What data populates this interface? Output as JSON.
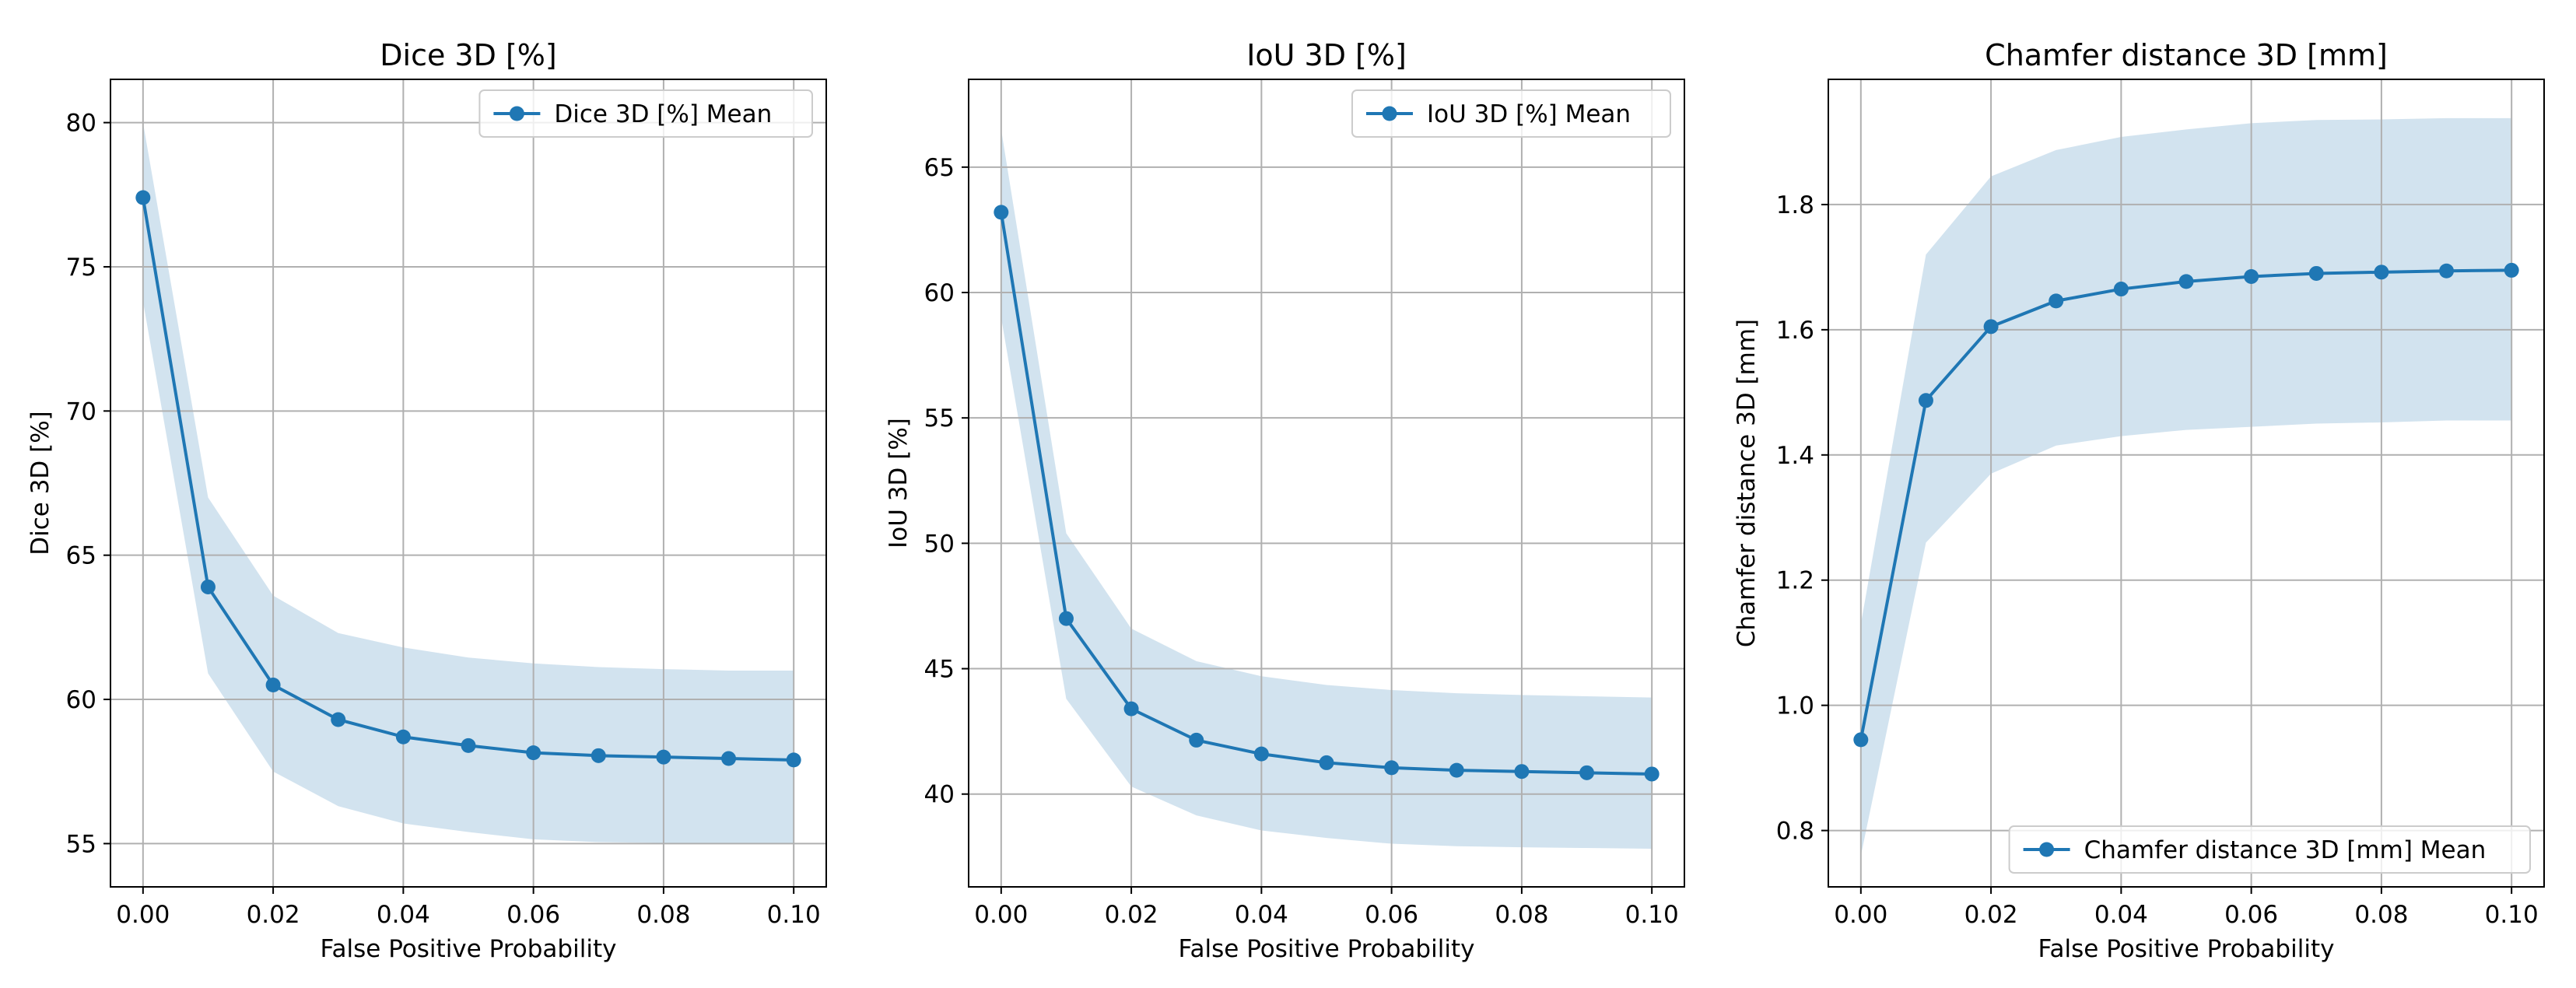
{
  "chart_data": [
    {
      "type": "line",
      "title": "Dice 3D [%]",
      "xlabel": "False Positive Probability",
      "ylabel": "Dice 3D [%]",
      "xlim": [
        -0.005,
        0.105
      ],
      "ylim": [
        53.5,
        81.5
      ],
      "x_ticks": [
        0.0,
        0.02,
        0.04,
        0.06,
        0.08,
        0.1
      ],
      "x_tick_labels": [
        "0.00",
        "0.02",
        "0.04",
        "0.06",
        "0.08",
        "0.10"
      ],
      "y_ticks": [
        55,
        60,
        65,
        70,
        75,
        80
      ],
      "y_tick_labels": [
        "55",
        "60",
        "65",
        "70",
        "75",
        "80"
      ],
      "grid": true,
      "legend_position": "upper right",
      "series": [
        {
          "name": "Dice 3D [%] Mean",
          "color": "#1f77b4",
          "x": [
            0.0,
            0.01,
            0.02,
            0.03,
            0.04,
            0.05,
            0.06,
            0.07,
            0.08,
            0.09,
            0.1
          ],
          "values": [
            77.4,
            63.9,
            60.5,
            59.3,
            58.7,
            58.4,
            58.15,
            58.05,
            58.0,
            57.95,
            57.9
          ],
          "band_upper": [
            80.0,
            67.0,
            63.6,
            62.3,
            61.8,
            61.45,
            61.25,
            61.12,
            61.05,
            61.0,
            61.0
          ],
          "band_lower": [
            73.8,
            60.9,
            57.5,
            56.3,
            55.7,
            55.4,
            55.15,
            55.05,
            55.02,
            55.0,
            55.0
          ],
          "band_color": "#a6c8e0"
        }
      ]
    },
    {
      "type": "line",
      "title": "IoU 3D [%]",
      "xlabel": "False Positive Probability",
      "ylabel": "IoU 3D [%]",
      "xlim": [
        -0.005,
        0.105
      ],
      "ylim": [
        36.3,
        68.5
      ],
      "x_ticks": [
        0.0,
        0.02,
        0.04,
        0.06,
        0.08,
        0.1
      ],
      "x_tick_labels": [
        "0.00",
        "0.02",
        "0.04",
        "0.06",
        "0.08",
        "0.10"
      ],
      "y_ticks": [
        40,
        45,
        50,
        55,
        60,
        65
      ],
      "y_tick_labels": [
        "40",
        "45",
        "50",
        "55",
        "60",
        "65"
      ],
      "grid": true,
      "legend_position": "upper right",
      "series": [
        {
          "name": "IoU 3D [%] Mean",
          "color": "#1f77b4",
          "x": [
            0.0,
            0.01,
            0.02,
            0.03,
            0.04,
            0.05,
            0.06,
            0.07,
            0.08,
            0.09,
            0.1
          ],
          "values": [
            63.2,
            47.0,
            43.4,
            42.15,
            41.6,
            41.25,
            41.05,
            40.95,
            40.9,
            40.85,
            40.8
          ],
          "band_upper": [
            66.5,
            50.4,
            46.6,
            45.3,
            44.7,
            44.35,
            44.15,
            44.02,
            43.95,
            43.9,
            43.85
          ],
          "band_lower": [
            59.0,
            43.8,
            40.3,
            39.15,
            38.55,
            38.25,
            38.02,
            37.92,
            37.88,
            37.85,
            37.82
          ],
          "band_color": "#a6c8e0"
        }
      ]
    },
    {
      "type": "line",
      "title": "Chamfer distance 3D [mm]",
      "xlabel": "False Positive Probability",
      "ylabel": "Chamfer distance 3D [mm]",
      "xlim": [
        -0.005,
        0.105
      ],
      "ylim": [
        0.71,
        2.0
      ],
      "x_ticks": [
        0.0,
        0.02,
        0.04,
        0.06,
        0.08,
        0.1
      ],
      "x_tick_labels": [
        "0.00",
        "0.02",
        "0.04",
        "0.06",
        "0.08",
        "0.10"
      ],
      "y_ticks": [
        0.8,
        1.0,
        1.2,
        1.4,
        1.6,
        1.8
      ],
      "y_tick_labels": [
        "0.8",
        "1.0",
        "1.2",
        "1.4",
        "1.6",
        "1.8"
      ],
      "grid": true,
      "legend_position": "lower right",
      "series": [
        {
          "name": "Chamfer distance 3D [mm] Mean",
          "color": "#1f77b4",
          "x": [
            0.0,
            0.01,
            0.02,
            0.03,
            0.04,
            0.05,
            0.06,
            0.07,
            0.08,
            0.09,
            0.1
          ],
          "values": [
            0.945,
            1.487,
            1.605,
            1.646,
            1.665,
            1.677,
            1.685,
            1.69,
            1.692,
            1.694,
            1.695
          ],
          "band_upper": [
            1.13,
            1.72,
            1.845,
            1.887,
            1.908,
            1.92,
            1.93,
            1.935,
            1.936,
            1.938,
            1.938
          ],
          "band_lower": [
            0.76,
            1.26,
            1.37,
            1.415,
            1.43,
            1.44,
            1.445,
            1.45,
            1.452,
            1.455,
            1.455
          ],
          "band_color": "#a6c8e0"
        }
      ]
    }
  ]
}
